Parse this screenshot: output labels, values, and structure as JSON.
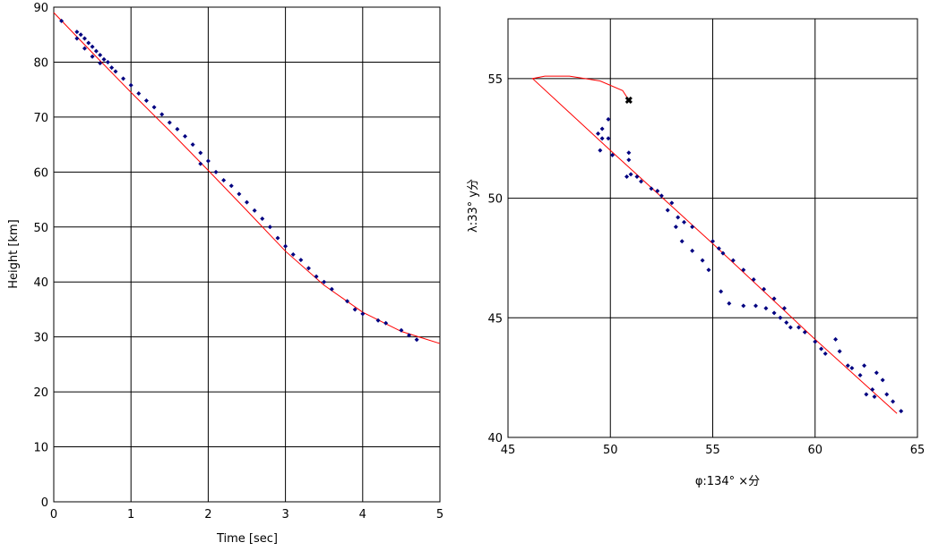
{
  "chart_data": [
    {
      "type": "scatter",
      "xlabel": "Time [sec]",
      "ylabel": "Height [km]",
      "xlim": [
        0,
        5
      ],
      "ylim": [
        0,
        90
      ],
      "xticks": [
        0,
        1,
        2,
        3,
        4,
        5
      ],
      "yticks": [
        0,
        10,
        20,
        30,
        40,
        50,
        60,
        70,
        80,
        90
      ],
      "grid": true,
      "colors": {
        "points": "#000080",
        "fit": "#ff0000"
      },
      "points": [
        [
          0.1,
          87.5
        ],
        [
          0.3,
          85.5
        ],
        [
          0.3,
          84.3
        ],
        [
          0.35,
          85
        ],
        [
          0.4,
          84.3
        ],
        [
          0.45,
          83.5
        ],
        [
          0.5,
          82.8
        ],
        [
          0.4,
          82.5
        ],
        [
          0.55,
          82
        ],
        [
          0.5,
          81
        ],
        [
          0.6,
          81.3
        ],
        [
          0.65,
          80.5
        ],
        [
          0.6,
          79.8
        ],
        [
          0.7,
          80
        ],
        [
          0.75,
          79
        ],
        [
          0.8,
          78.3
        ],
        [
          0.9,
          77
        ],
        [
          1.0,
          75.8
        ],
        [
          1.1,
          74.3
        ],
        [
          1.2,
          73
        ],
        [
          1.3,
          71.8
        ],
        [
          1.4,
          70.5
        ],
        [
          1.5,
          69
        ],
        [
          1.6,
          67.8
        ],
        [
          1.7,
          66.5
        ],
        [
          1.8,
          65
        ],
        [
          1.9,
          63.5
        ],
        [
          1.9,
          61.5
        ],
        [
          2.0,
          62
        ],
        [
          2.1,
          60
        ],
        [
          2.2,
          58.5
        ],
        [
          2.3,
          57.5
        ],
        [
          2.4,
          56
        ],
        [
          2.5,
          54.5
        ],
        [
          2.6,
          53
        ],
        [
          2.7,
          51.5
        ],
        [
          2.8,
          50
        ],
        [
          2.9,
          48
        ],
        [
          3.0,
          46.5
        ],
        [
          3.1,
          45
        ],
        [
          3.2,
          44
        ],
        [
          3.3,
          42.5
        ],
        [
          3.4,
          41
        ],
        [
          3.5,
          40
        ],
        [
          3.6,
          38.7
        ],
        [
          3.8,
          36.5
        ],
        [
          3.9,
          35
        ],
        [
          4.0,
          34.2
        ],
        [
          4.2,
          33
        ],
        [
          4.3,
          32.5
        ],
        [
          4.5,
          31.2
        ],
        [
          4.6,
          30.3
        ],
        [
          4.7,
          29.5
        ]
      ],
      "fit_line": [
        [
          0,
          89
        ],
        [
          0.5,
          81.7
        ],
        [
          1,
          74.5
        ],
        [
          1.5,
          67.5
        ],
        [
          2,
          60.3
        ],
        [
          2.5,
          53
        ],
        [
          3,
          45.6
        ],
        [
          3.5,
          39.4
        ],
        [
          4,
          34.5
        ],
        [
          4.5,
          31
        ],
        [
          5,
          28.8
        ]
      ]
    },
    {
      "type": "scatter",
      "xlabel": "φ:134° ×分",
      "ylabel": "λ:33° y分",
      "xlim": [
        45,
        65
      ],
      "ylim": [
        40,
        57.5
      ],
      "xticks": [
        45,
        50,
        55,
        60,
        65
      ],
      "yticks": [
        40,
        45,
        50,
        55
      ],
      "grid": true,
      "colors": {
        "points": "#000080",
        "fit": "#ff0000",
        "end_marker": "#000000"
      },
      "points": [
        [
          49.4,
          52.7
        ],
        [
          49.6,
          52.9
        ],
        [
          49.9,
          53.3
        ],
        [
          49.6,
          52.5
        ],
        [
          49.9,
          52.5
        ],
        [
          49.5,
          52.0
        ],
        [
          50.1,
          51.8
        ],
        [
          50.9,
          51.9
        ],
        [
          50.9,
          51.6
        ],
        [
          51.0,
          51.0
        ],
        [
          50.8,
          50.9
        ],
        [
          51.3,
          50.9
        ],
        [
          51.5,
          50.7
        ],
        [
          52.0,
          50.4
        ],
        [
          52.5,
          50.1
        ],
        [
          52.3,
          50.3
        ],
        [
          53.0,
          49.8
        ],
        [
          52.8,
          49.5
        ],
        [
          53.3,
          49.2
        ],
        [
          53.6,
          49.0
        ],
        [
          54.0,
          48.8
        ],
        [
          53.2,
          48.8
        ],
        [
          53.5,
          48.2
        ],
        [
          54.0,
          47.8
        ],
        [
          54.5,
          47.4
        ],
        [
          55.0,
          48.2
        ],
        [
          55.3,
          47.9
        ],
        [
          55.5,
          47.7
        ],
        [
          56.0,
          47.4
        ],
        [
          56.5,
          47.0
        ],
        [
          57.0,
          46.6
        ],
        [
          57.5,
          46.2
        ],
        [
          58.0,
          45.8
        ],
        [
          58.5,
          45.4
        ],
        [
          54.8,
          47.0
        ],
        [
          55.4,
          46.1
        ],
        [
          55.8,
          45.6
        ],
        [
          56.5,
          45.5
        ],
        [
          57.1,
          45.5
        ],
        [
          57.6,
          45.4
        ],
        [
          58.0,
          45.2
        ],
        [
          58.3,
          45.0
        ],
        [
          58.6,
          44.8
        ],
        [
          58.8,
          44.6
        ],
        [
          59.2,
          44.6
        ],
        [
          59.5,
          44.4
        ],
        [
          60.0,
          44.0
        ],
        [
          60.3,
          43.7
        ],
        [
          60.5,
          43.5
        ],
        [
          61.0,
          44.1
        ],
        [
          61.2,
          43.6
        ],
        [
          61.6,
          43.0
        ],
        [
          61.8,
          42.9
        ],
        [
          62.2,
          42.6
        ],
        [
          62.4,
          43.0
        ],
        [
          62.8,
          42.0
        ],
        [
          63.0,
          42.7
        ],
        [
          63.3,
          42.4
        ],
        [
          63.5,
          41.8
        ],
        [
          63.8,
          41.5
        ],
        [
          64.2,
          41.1
        ],
        [
          62.5,
          41.8
        ],
        [
          62.9,
          41.7
        ]
      ],
      "fit_line": [
        [
          50.9,
          54.1
        ],
        [
          50.6,
          54.5
        ],
        [
          49.5,
          54.9
        ],
        [
          48,
          55.1
        ],
        [
          46.8,
          55.1
        ],
        [
          46.2,
          55.0
        ],
        [
          50,
          52.0
        ],
        [
          55,
          48.1
        ],
        [
          60,
          44.1
        ],
        [
          64,
          41.0
        ]
      ],
      "end_marker": [
        50.9,
        54.1
      ]
    }
  ]
}
